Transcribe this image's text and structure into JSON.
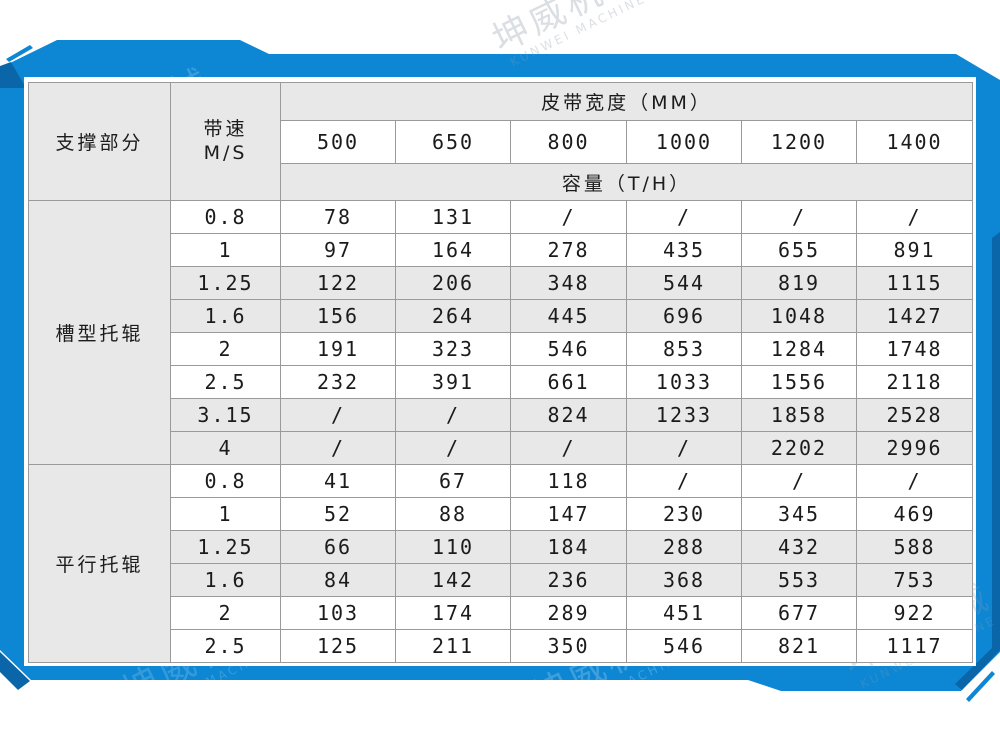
{
  "watermark": {
    "cn": "坤威机械",
    "en": "KUNWEI MACHINE"
  },
  "colors": {
    "primary_blue": "#0d87d4",
    "dark_blue": "#0a66a8",
    "table_header_bg": "#e8e8e8",
    "stripe_bg": "#e8e8e8",
    "grid_border": "#9a9a9a",
    "text": "#1b1b1b"
  },
  "chart_data": {
    "type": "table",
    "corner_header": "支撑部分",
    "speed_header": [
      "带速",
      "M/S"
    ],
    "span_header_top": "皮带宽度（MM）",
    "span_header_bottom": "容量（T/H）",
    "belt_widths": [
      "500",
      "650",
      "800",
      "1000",
      "1200",
      "1400"
    ],
    "groups": [
      {
        "label": "槽型托辊",
        "rows": [
          {
            "speed": "0.8",
            "values": [
              "78",
              "131",
              "/",
              "/",
              "/",
              "/"
            ]
          },
          {
            "speed": "1",
            "values": [
              "97",
              "164",
              "278",
              "435",
              "655",
              "891"
            ]
          },
          {
            "speed": "1.25",
            "values": [
              "122",
              "206",
              "348",
              "544",
              "819",
              "1115"
            ]
          },
          {
            "speed": "1.6",
            "values": [
              "156",
              "264",
              "445",
              "696",
              "1048",
              "1427"
            ]
          },
          {
            "speed": "2",
            "values": [
              "191",
              "323",
              "546",
              "853",
              "1284",
              "1748"
            ]
          },
          {
            "speed": "2.5",
            "values": [
              "232",
              "391",
              "661",
              "1033",
              "1556",
              "2118"
            ]
          },
          {
            "speed": "3.15",
            "values": [
              "/",
              "/",
              "824",
              "1233",
              "1858",
              "2528"
            ]
          },
          {
            "speed": "4",
            "values": [
              "/",
              "/",
              "/",
              "/",
              "2202",
              "2996"
            ]
          }
        ]
      },
      {
        "label": "平行托辊",
        "rows": [
          {
            "speed": "0.8",
            "values": [
              "41",
              "67",
              "118",
              "/",
              "/",
              "/"
            ]
          },
          {
            "speed": "1",
            "values": [
              "52",
              "88",
              "147",
              "230",
              "345",
              "469"
            ]
          },
          {
            "speed": "1.25",
            "values": [
              "66",
              "110",
              "184",
              "288",
              "432",
              "588"
            ]
          },
          {
            "speed": "1.6",
            "values": [
              "84",
              "142",
              "236",
              "368",
              "553",
              "753"
            ]
          },
          {
            "speed": "2",
            "values": [
              "103",
              "174",
              "289",
              "451",
              "677",
              "922"
            ]
          },
          {
            "speed": "2.5",
            "values": [
              "125",
              "211",
              "350",
              "546",
              "821",
              "1117"
            ]
          }
        ]
      }
    ]
  }
}
